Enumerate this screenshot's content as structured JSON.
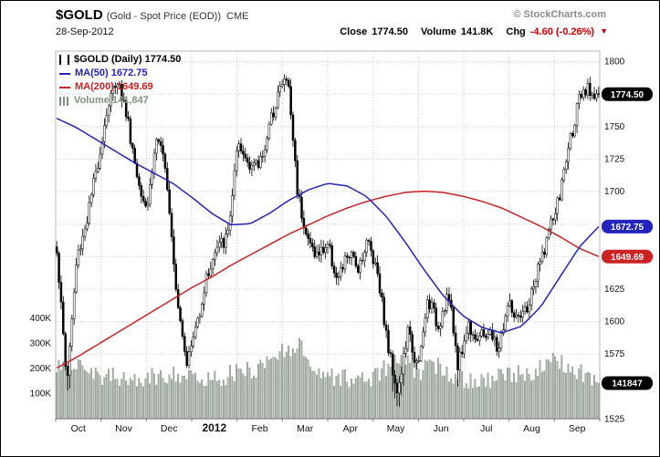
{
  "header": {
    "symbol": "$GOLD",
    "name": "(Gold - Spot Price (EOD))",
    "exchange": "CME",
    "watermark": "© StockCharts.com",
    "date": "28-Sep-2012",
    "close_label": "Close",
    "close_value": "1774.50",
    "volume_label": "Volume",
    "volume_value": "141.8K",
    "chg_label": "Chg",
    "chg_value": "-4.60 (-0.26%)",
    "chg_arrow": "▼"
  },
  "legend": {
    "title": "$GOLD (Daily) 1774.50",
    "ma50": "MA(50) 1672.75",
    "ma200": "MA(200) 1649.69",
    "volume": "Volume 141,847"
  },
  "colors": {
    "ma50": "#2323bd",
    "ma200": "#cc2222",
    "candle": "#000000",
    "volume_fill": "#a9b3a9",
    "volume_stroke": "#6e7d6e",
    "volume_legend_text": "#7e937e",
    "grid": "#c9c9c9",
    "axis_text": "#111111",
    "negative": "#cc0000",
    "last_price_box": "#000000"
  },
  "chart_data": {
    "type": "candlestick",
    "title": "$GOLD (Gold - Spot Price (EOD)) CME - Daily",
    "date_range": "Oct 2011 - 28-Sep-2012",
    "x_months": [
      "Oct",
      "Nov",
      "Dec",
      "2012",
      "Feb",
      "Mar",
      "Apr",
      "May",
      "Jun",
      "Jul",
      "Aug",
      "Sep"
    ],
    "year_label": "2012",
    "right_axis_ticks": [
      1800,
      1775,
      1750,
      1725,
      1700,
      1675,
      1650,
      1625,
      1600,
      1575,
      1550,
      1525
    ],
    "ticks_covered_by_boxes": [
      1775,
      1675,
      1650,
      1550
    ],
    "left_volume_ticks": [
      "100K",
      "200K",
      "300K",
      "400K"
    ],
    "ylim": [
      1525,
      1800
    ],
    "volume_ylim": [
      0,
      400000
    ],
    "grid": true,
    "legend_position": "top-left",
    "series": [
      {
        "name": "$GOLD daily close",
        "color": "#000000",
        "data_key": "close_anchors_weekly"
      },
      {
        "name": "MA(50)",
        "color": "#2323bd",
        "data_key": "ma50_anchors"
      },
      {
        "name": "MA(200)",
        "color": "#cc2222",
        "data_key": "ma200_anchors"
      },
      {
        "name": "Volume (thousands)",
        "color": "#a9b3a9",
        "data_key": "volume_anchors_k"
      }
    ],
    "close_anchors_weekly": [
      1656,
      1552,
      1648,
      1678,
      1718,
      1762,
      1788,
      1758,
      1712,
      1688,
      1744,
      1708,
      1618,
      1568,
      1600,
      1636,
      1656,
      1664,
      1732,
      1724,
      1718,
      1742,
      1776,
      1788,
      1700,
      1662,
      1650,
      1660,
      1630,
      1652,
      1642,
      1662,
      1638,
      1580,
      1545,
      1592,
      1562,
      1618,
      1596,
      1622,
      1566,
      1598,
      1586,
      1592,
      1578,
      1614,
      1598,
      1612,
      1640,
      1668,
      1692,
      1734,
      1768,
      1778,
      1774.5
    ],
    "ma50_anchors": [
      1756,
      1749,
      1740,
      1731,
      1722,
      1714,
      1706,
      1695,
      1683,
      1674,
      1675,
      1683,
      1693,
      1701,
      1706,
      1704,
      1696,
      1681,
      1661,
      1639,
      1619,
      1604,
      1595,
      1591,
      1596,
      1611,
      1634,
      1657,
      1672.75
    ],
    "ma200_anchors": [
      1564,
      1572,
      1581,
      1590,
      1599,
      1608,
      1617,
      1626,
      1634,
      1643,
      1651,
      1659,
      1667,
      1674,
      1681,
      1687,
      1692,
      1696,
      1699,
      1700,
      1699,
      1696,
      1692,
      1687,
      1680,
      1673,
      1665,
      1656,
      1649.69
    ],
    "volume_anchors_k": [
      190,
      235,
      175,
      160,
      150,
      165,
      185,
      150,
      165,
      180,
      200,
      260,
      300,
      185,
      165,
      150,
      175,
      240,
      190,
      210,
      165,
      150,
      160,
      175,
      195,
      230,
      185,
      155
    ],
    "last": {
      "close": 1774.5,
      "ma50": 1672.75,
      "ma200": 1649.69,
      "volume": 141847
    },
    "last_labels": {
      "close": "1774.50",
      "ma50": "1672.75",
      "ma200": "1649.69",
      "volume": "141847"
    }
  }
}
